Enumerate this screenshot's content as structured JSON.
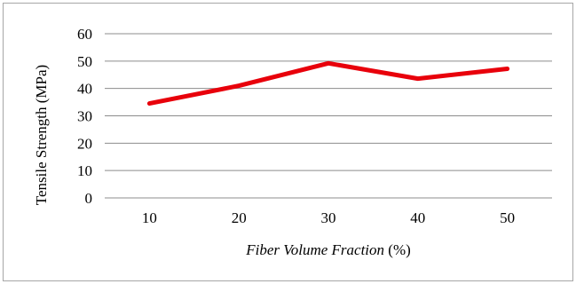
{
  "chart_data": {
    "type": "line",
    "x": [
      10,
      20,
      30,
      40,
      50
    ],
    "categories": [
      "10",
      "20",
      "30",
      "40",
      "50"
    ],
    "series": [
      {
        "values": [
          34.5,
          41,
          49.2,
          43.6,
          47.2
        ],
        "color": "#e8000b"
      }
    ],
    "xlabel": {
      "italic_part": "Fiber Volume Fraction",
      "unit_part": " (%)"
    },
    "ylabel": "Tensile Strength (MPa)",
    "ylim": [
      0,
      60
    ],
    "yticks": [
      "0",
      "10",
      "20",
      "30",
      "40",
      "50",
      "60"
    ],
    "grid": true,
    "gridline_color": "#8c8c8c",
    "legend": "none"
  }
}
